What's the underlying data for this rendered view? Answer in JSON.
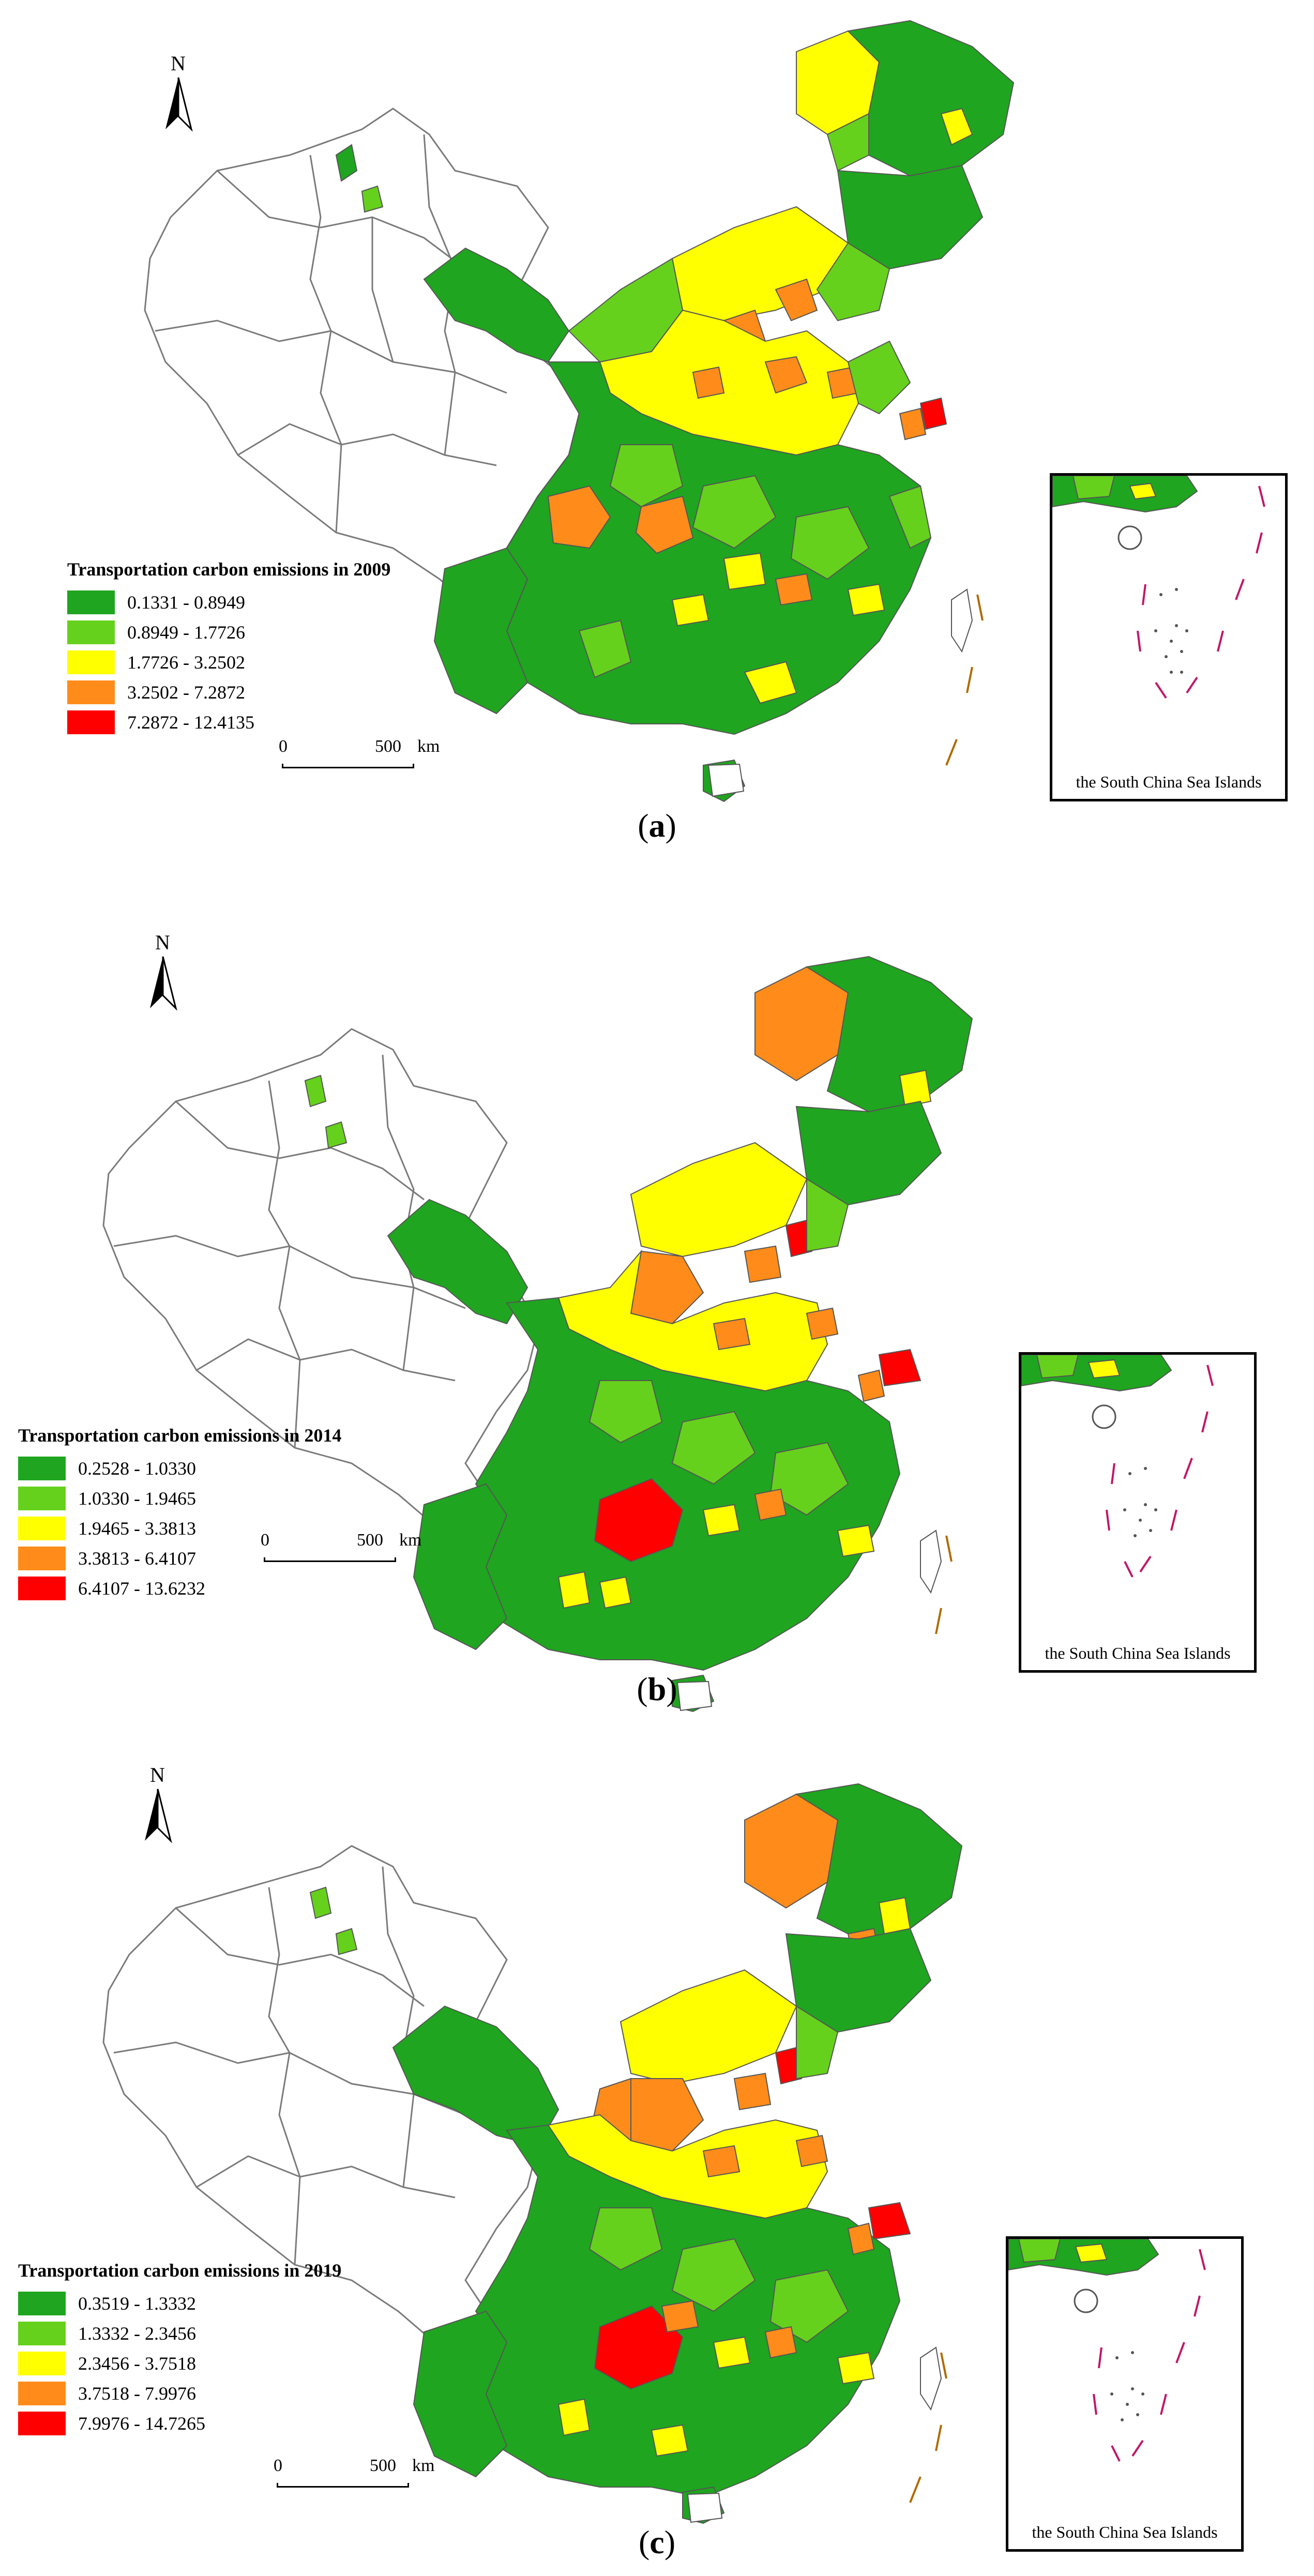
{
  "panels": [
    {
      "id": "a",
      "north_label": "N",
      "legend": {
        "title": "Transportation  carbon emissions in 2009",
        "classes": [
          {
            "label": "0.1331 - 0.8949",
            "color": "#1fa51f"
          },
          {
            "label": "0.8949 - 1.7726",
            "color": "#66d11c"
          },
          {
            "label": "1.7726 - 3.2502",
            "color": "#ffff00"
          },
          {
            "label": "3.2502 - 7.2872",
            "color": "#ff8c1a"
          },
          {
            "label": "7.2872 - 12.4135",
            "color": "#ff0000"
          }
        ]
      },
      "scale": {
        "start": "0",
        "end": "500",
        "unit": "km"
      },
      "inset_label": "the South China  Sea Islands",
      "caption_letter": "a"
    },
    {
      "id": "b",
      "north_label": "N",
      "legend": {
        "title": "Transportation  carbon emissions  in  2014",
        "classes": [
          {
            "label": "0.2528 - 1.0330",
            "color": "#1fa51f"
          },
          {
            "label": "1.0330 - 1.9465",
            "color": "#66d11c"
          },
          {
            "label": "1.9465 - 3.3813",
            "color": "#ffff00"
          },
          {
            "label": "3.3813 - 6.4107",
            "color": "#ff8c1a"
          },
          {
            "label": "6.4107 - 13.6232",
            "color": "#ff0000"
          }
        ]
      },
      "scale": {
        "start": "0",
        "end": "500",
        "unit": "km"
      },
      "inset_label": "the South China Sea Islands",
      "caption_letter": "b"
    },
    {
      "id": "c",
      "north_label": "N",
      "legend": {
        "title": "Transportation  carbon emissions in 2019",
        "classes": [
          {
            "label": "0.3519 - 1.3332",
            "color": "#1fa51f"
          },
          {
            "label": "1.3332 - 2.3456",
            "color": "#66d11c"
          },
          {
            "label": "2.3456 - 3.7518",
            "color": "#ffff00"
          },
          {
            "label": "3.7518 - 7.9976",
            "color": "#ff8c1a"
          },
          {
            "label": "7.9976 - 14.7265",
            "color": "#ff0000"
          }
        ]
      },
      "scale": {
        "start": "0",
        "end": "500",
        "unit": "km"
      },
      "inset_label": "the South China Sea Islands",
      "caption_letter": "c"
    }
  ],
  "caption_open": "(",
  "caption_close": ")"
}
